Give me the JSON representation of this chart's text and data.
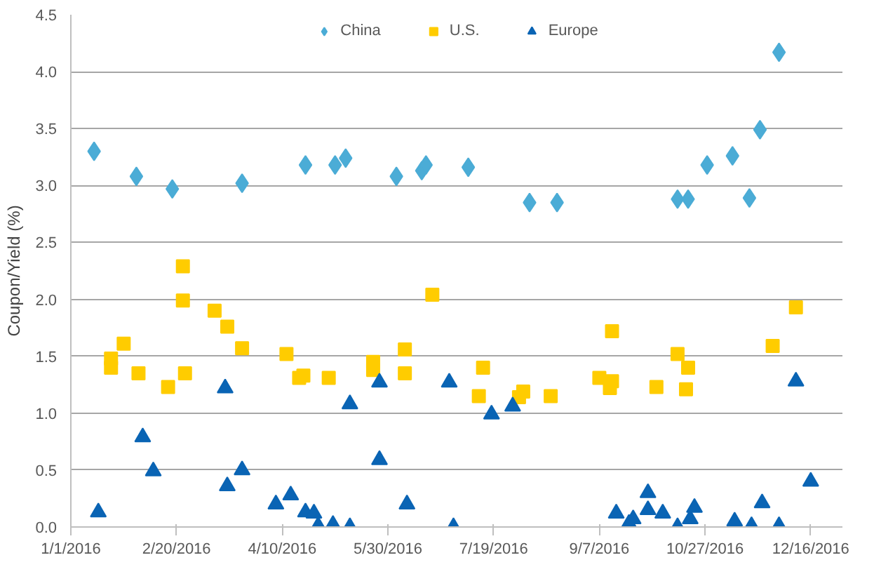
{
  "chart_data": {
    "type": "scatter",
    "ylabel": "Coupon/Yield (%)",
    "xlim": [
      "2016-01-01",
      "2016-12-31"
    ],
    "xticks": [
      {
        "value": "2016-01-01",
        "label": "1/1/2016"
      },
      {
        "value": "2016-02-20",
        "label": "2/20/2016"
      },
      {
        "value": "2016-04-10",
        "label": "4/10/2016"
      },
      {
        "value": "2016-05-30",
        "label": "5/30/2016"
      },
      {
        "value": "2016-07-19",
        "label": "7/19/2016"
      },
      {
        "value": "2016-09-07",
        "label": "9/7/2016"
      },
      {
        "value": "2016-10-27",
        "label": "10/27/2016"
      },
      {
        "value": "2016-12-16",
        "label": "12/16/2016"
      }
    ],
    "ylim": [
      0,
      4.5
    ],
    "yticks": [
      {
        "value": 0,
        "label": "0.0"
      },
      {
        "value": 0.5,
        "label": "0.5"
      },
      {
        "value": 1,
        "label": "1.0"
      },
      {
        "value": 1.5,
        "label": "1.5"
      },
      {
        "value": 2,
        "label": "2.0"
      },
      {
        "value": 2.5,
        "label": "2.5"
      },
      {
        "value": 3,
        "label": "3.0"
      },
      {
        "value": 3.5,
        "label": "3.5"
      },
      {
        "value": 4,
        "label": "4.0"
      },
      {
        "value": 4.5,
        "label": "4.5"
      }
    ],
    "grid": "y",
    "legend": "top",
    "series": [
      {
        "name": "China",
        "color": "#4bacd6",
        "marker": "diamond",
        "x": [
          "2016-01-12",
          "2016-02-01",
          "2016-02-18",
          "2016-03-22",
          "2016-04-21",
          "2016-05-05",
          "2016-05-10",
          "2016-06-03",
          "2016-06-15",
          "2016-06-17",
          "2016-07-07",
          "2016-08-05",
          "2016-08-18",
          "2016-10-14",
          "2016-10-19",
          "2016-10-28",
          "2016-11-09",
          "2016-11-17",
          "2016-11-22",
          "2016-12-01"
        ],
        "values": [
          3.3,
          3.08,
          2.97,
          3.02,
          3.18,
          3.18,
          3.24,
          3.08,
          3.13,
          3.18,
          3.16,
          2.85,
          2.85,
          2.88,
          2.88,
          3.18,
          3.26,
          2.89,
          3.49,
          4.17
        ]
      },
      {
        "name": "U.S.",
        "color": "#ffcc00",
        "marker": "square",
        "x": [
          "2016-01-20",
          "2016-01-20",
          "2016-01-26",
          "2016-02-02",
          "2016-02-16",
          "2016-02-24",
          "2016-02-23",
          "2016-02-23",
          "2016-03-09",
          "2016-03-15",
          "2016-03-22",
          "2016-04-12",
          "2016-04-18",
          "2016-04-20",
          "2016-05-02",
          "2016-05-23",
          "2016-05-23",
          "2016-06-07",
          "2016-06-07",
          "2016-06-20",
          "2016-07-12",
          "2016-07-14",
          "2016-07-31",
          "2016-08-02",
          "2016-08-15",
          "2016-09-07",
          "2016-09-12",
          "2016-09-13",
          "2016-09-13",
          "2016-10-04",
          "2016-10-14",
          "2016-10-19",
          "2016-10-18",
          "2016-11-28",
          "2016-12-09"
        ],
        "values": [
          1.48,
          1.4,
          1.61,
          1.35,
          1.23,
          1.35,
          2.29,
          1.99,
          1.9,
          1.76,
          1.57,
          1.52,
          1.31,
          1.33,
          1.31,
          1.45,
          1.38,
          1.56,
          1.35,
          2.04,
          1.15,
          1.4,
          1.14,
          1.19,
          1.15,
          1.31,
          1.22,
          1.28,
          1.72,
          1.23,
          1.52,
          1.4,
          1.21,
          1.59,
          1.93
        ]
      },
      {
        "name": "Europe",
        "color": "#0a64b4",
        "marker": "triangle",
        "x": [
          "2016-01-14",
          "2016-02-04",
          "2016-02-09",
          "2016-03-14",
          "2016-03-15",
          "2016-03-22",
          "2016-04-07",
          "2016-04-14",
          "2016-04-21",
          "2016-04-25",
          "2016-04-27",
          "2016-05-04",
          "2016-05-12",
          "2016-05-12",
          "2016-05-26",
          "2016-05-26",
          "2016-06-08",
          "2016-06-28",
          "2016-06-30",
          "2016-07-18",
          "2016-07-28",
          "2016-09-15",
          "2016-09-21",
          "2016-09-23",
          "2016-09-30",
          "2016-09-30",
          "2016-10-07",
          "2016-10-14",
          "2016-10-20",
          "2016-10-22",
          "2016-11-10",
          "2016-11-18",
          "2016-11-23",
          "2016-12-01",
          "2016-12-09",
          "2016-12-16"
        ],
        "values": [
          0.13,
          0.79,
          0.49,
          1.22,
          0.36,
          0.5,
          0.2,
          0.28,
          0.13,
          0.12,
          0.01,
          0.02,
          1.08,
          0.0,
          0.59,
          1.27,
          0.2,
          1.27,
          0.0,
          0.99,
          1.06,
          0.12,
          0.03,
          0.07,
          0.3,
          0.15,
          0.12,
          0.0,
          0.07,
          0.17,
          0.05,
          0.01,
          0.21,
          0.01,
          1.28,
          0.4
        ]
      }
    ]
  }
}
